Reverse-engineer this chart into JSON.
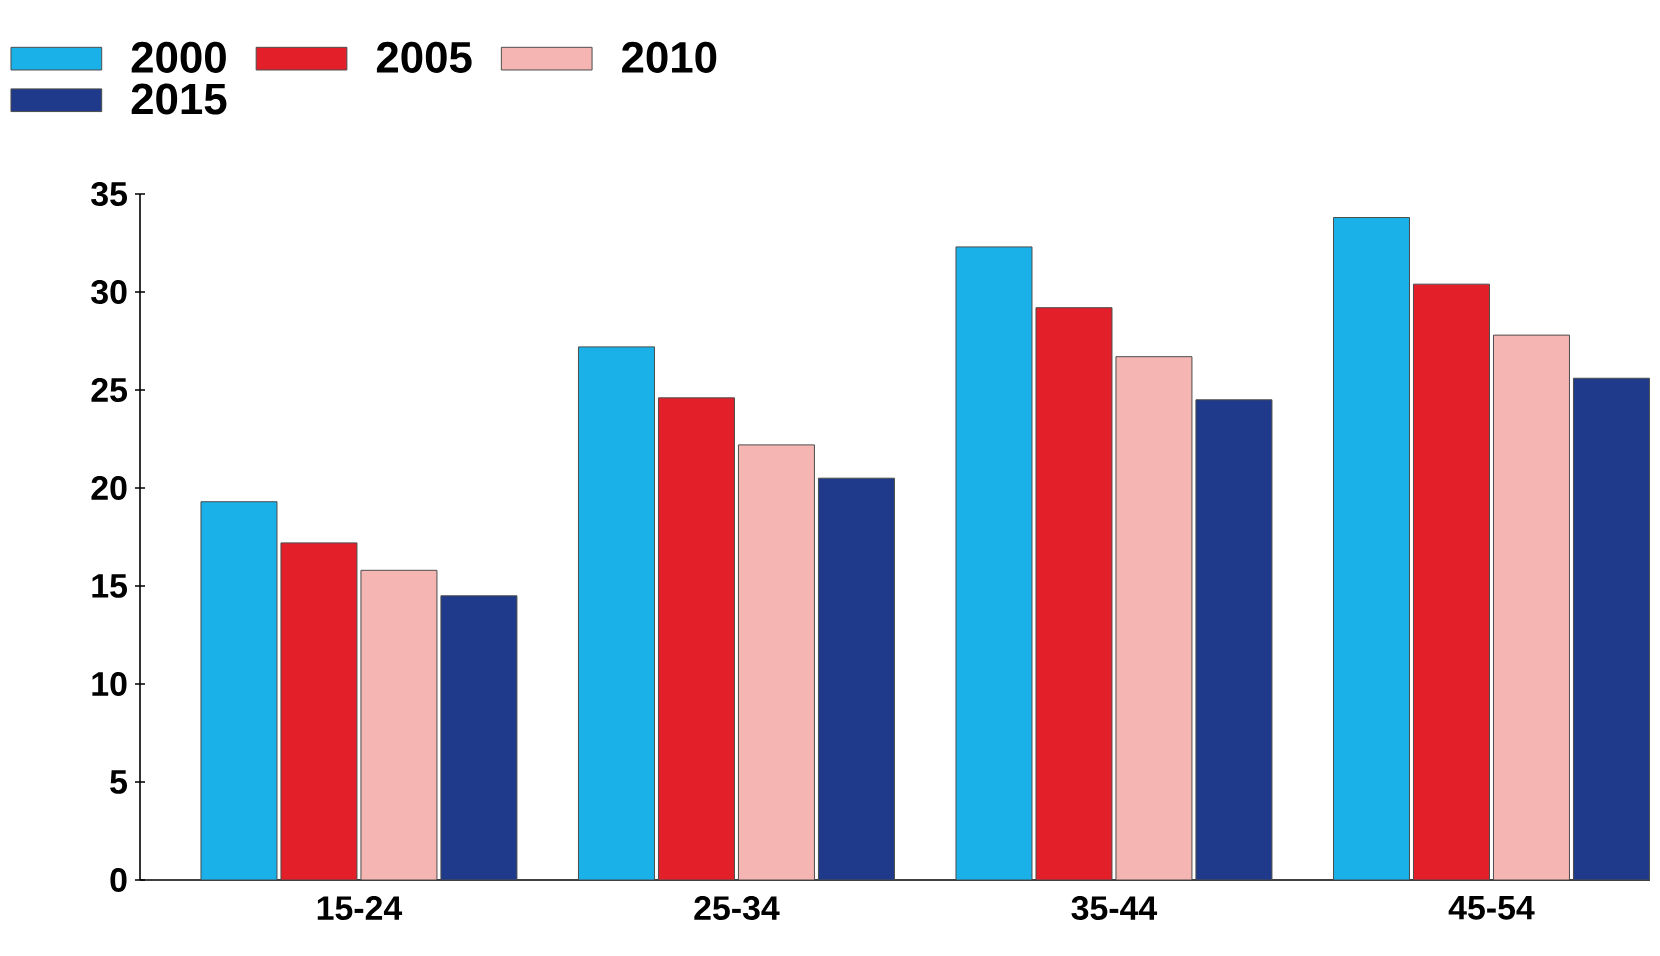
{
  "chart_data": {
    "type": "bar",
    "categories": [
      "15-24",
      "25-34",
      "35-44",
      "45-54"
    ],
    "series": [
      {
        "name": "2000",
        "color": "#1ab0e8",
        "values": [
          19.3,
          27.2,
          32.3,
          33.8
        ]
      },
      {
        "name": "2005",
        "color": "#e3202a",
        "values": [
          17.2,
          24.6,
          29.2,
          30.4
        ]
      },
      {
        "name": "2010",
        "color": "#f5b5b3",
        "values": [
          15.8,
          22.2,
          26.7,
          27.8
        ]
      },
      {
        "name": "2015",
        "color": "#1f3a8a",
        "values": [
          14.5,
          20.5,
          24.5,
          25.6
        ]
      }
    ],
    "ylim": [
      0,
      35
    ],
    "yticks": [
      0,
      5,
      10,
      15,
      20,
      25,
      30,
      35
    ],
    "legend": "top",
    "grid": false
  }
}
